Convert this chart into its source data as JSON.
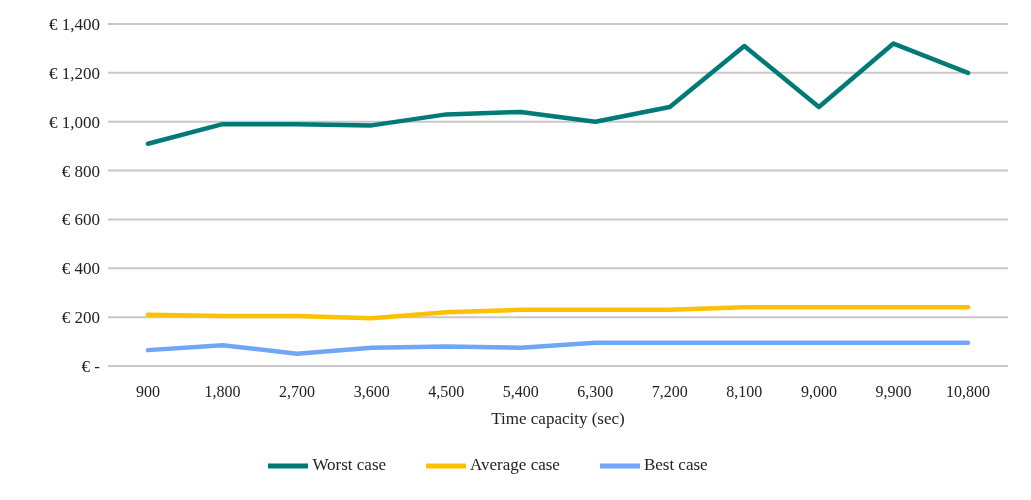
{
  "chart_data": {
    "type": "line",
    "xlabel": "Time capacity (sec)",
    "categories": [
      "900",
      "1,800",
      "2,700",
      "3,600",
      "4,500",
      "5,400",
      "6,300",
      "7,200",
      "8,100",
      "9,000",
      "9,900",
      "10,800"
    ],
    "series": [
      {
        "name": "Worst case",
        "color": "#007a76",
        "values": [
          910,
          990,
          990,
          985,
          1030,
          1040,
          1000,
          1060,
          1310,
          1060,
          1320,
          1200
        ]
      },
      {
        "name": "Average case",
        "color": "#ffc000",
        "values": [
          210,
          205,
          205,
          195,
          220,
          230,
          230,
          230,
          240,
          240,
          240,
          240
        ]
      },
      {
        "name": "Best case",
        "color": "#70a6f5",
        "values": [
          65,
          85,
          50,
          75,
          80,
          75,
          95,
          95,
          95,
          95,
          95,
          95
        ]
      }
    ],
    "ylim": [
      0,
      1400
    ],
    "yticks": [
      {
        "value": 0,
        "label": "€ -"
      },
      {
        "value": 200,
        "label": "€ 200"
      },
      {
        "value": 400,
        "label": "€ 400"
      },
      {
        "value": 600,
        "label": "€ 600"
      },
      {
        "value": 800,
        "label": "€ 800"
      },
      {
        "value": 1000,
        "label": "€ 1,000"
      },
      {
        "value": 1200,
        "label": "€ 1,200"
      },
      {
        "value": 1400,
        "label": "€ 1,400"
      }
    ],
    "grid": "y",
    "legend": "bottom",
    "marker": "none",
    "line_style": "solid"
  }
}
